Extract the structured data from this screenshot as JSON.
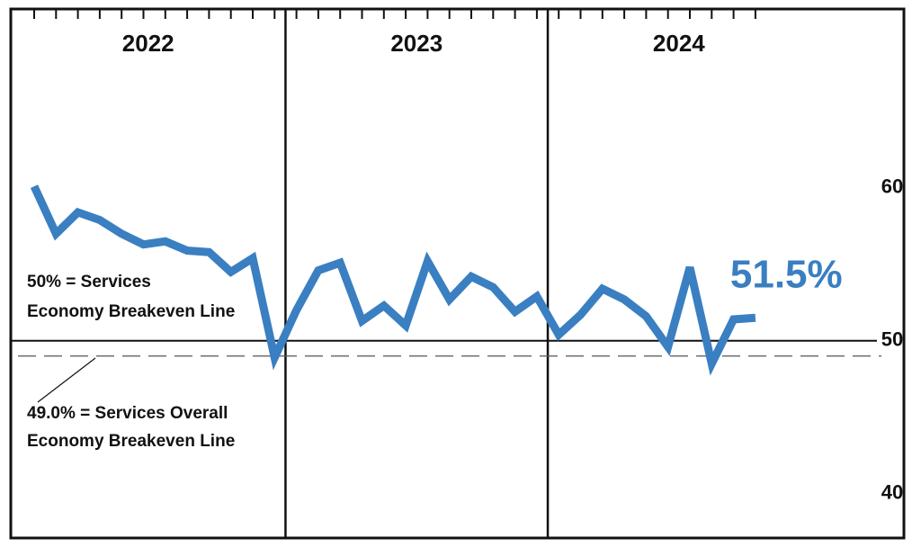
{
  "chart_data": {
    "type": "line",
    "years": [
      "2022",
      "2023",
      "2024"
    ],
    "categories": [
      null,
      null,
      null,
      null,
      null,
      null,
      null,
      null,
      null,
      null,
      null,
      null,
      null,
      null,
      null,
      null,
      null,
      null,
      null,
      null,
      null,
      null,
      null,
      null,
      null,
      null,
      null,
      null,
      null,
      null,
      null,
      null,
      null,
      null
    ],
    "series": [
      {
        "color": "#3a7fc1",
        "values": [
          60.1,
          57.0,
          58.4,
          57.9,
          57.0,
          56.3,
          56.5,
          55.9,
          55.8,
          54.5,
          55.4,
          48.9,
          52.0,
          54.6,
          55.1,
          51.3,
          52.3,
          51.0,
          55.2,
          52.7,
          54.2,
          53.5,
          51.9,
          52.9,
          50.4,
          51.7,
          53.4,
          52.7,
          51.6,
          49.6,
          54.8,
          48.5,
          51.4,
          51.5
        ],
        "value_labels": {
          "33": "51.5%"
        }
      }
    ],
    "ylim": [
      37.1,
      71.7
    ],
    "yticks": [
      40,
      50,
      60
    ],
    "reference_lines": [
      {
        "value": 50,
        "style": "solid"
      },
      {
        "value": 49.0,
        "style": "dashed"
      }
    ],
    "annotations": [
      [
        "50% = Services",
        "Economy Breakeven Line"
      ],
      [
        "49.0% = Services Overall",
        "Economy Breakeven Line"
      ]
    ]
  }
}
